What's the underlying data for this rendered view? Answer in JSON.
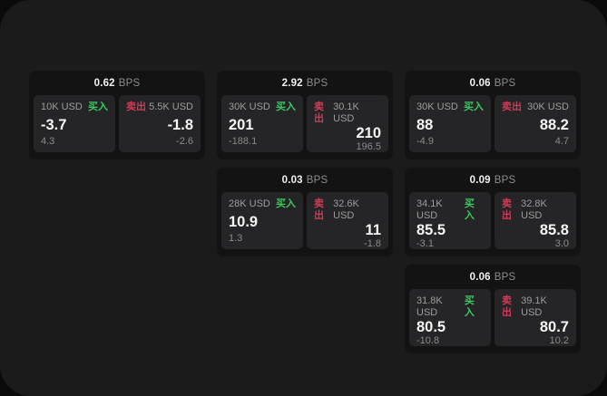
{
  "labels": {
    "bps_unit": "BPS",
    "buy": "买入",
    "sell": "卖出"
  },
  "colors": {
    "page_bg": "#0a0a0a",
    "panel_bg": "#1b1b1c",
    "card_bg": "#131314",
    "quote_bg": "#252527",
    "buy_green": "#3bc95f",
    "sell_red": "#cf3b56"
  },
  "cards": [
    {
      "bps": "0.62",
      "buy": {
        "amount": "10K USD",
        "value": "-3.7",
        "sub": "4.3"
      },
      "sell": {
        "amount": "5.5K USD",
        "value": "-1.8",
        "sub": "-2.6"
      }
    },
    {
      "bps": "2.92",
      "buy": {
        "amount": "30K USD",
        "value": "201",
        "sub": "-188.1"
      },
      "sell": {
        "amount": "30.1K USD",
        "value": "210",
        "sub": "196.5"
      }
    },
    {
      "bps": "0.06",
      "buy": {
        "amount": "30K USD",
        "value": "88",
        "sub": "-4.9"
      },
      "sell": {
        "amount": "30K USD",
        "value": "88.2",
        "sub": "4.7"
      }
    },
    {
      "bps": "0.03",
      "buy": {
        "amount": "28K USD",
        "value": "10.9",
        "sub": "1.3"
      },
      "sell": {
        "amount": "32.6K USD",
        "value": "11",
        "sub": "-1.8"
      }
    },
    {
      "bps": "0.09",
      "buy": {
        "amount": "34.1K USD",
        "value": "85.5",
        "sub": "-3.1"
      },
      "sell": {
        "amount": "32.8K USD",
        "value": "85.8",
        "sub": "3.0"
      }
    },
    {
      "bps": "0.06",
      "buy": {
        "amount": "31.8K USD",
        "value": "80.5",
        "sub": "-10.8"
      },
      "sell": {
        "amount": "39.1K USD",
        "value": "80.7",
        "sub": "10.2"
      }
    }
  ]
}
